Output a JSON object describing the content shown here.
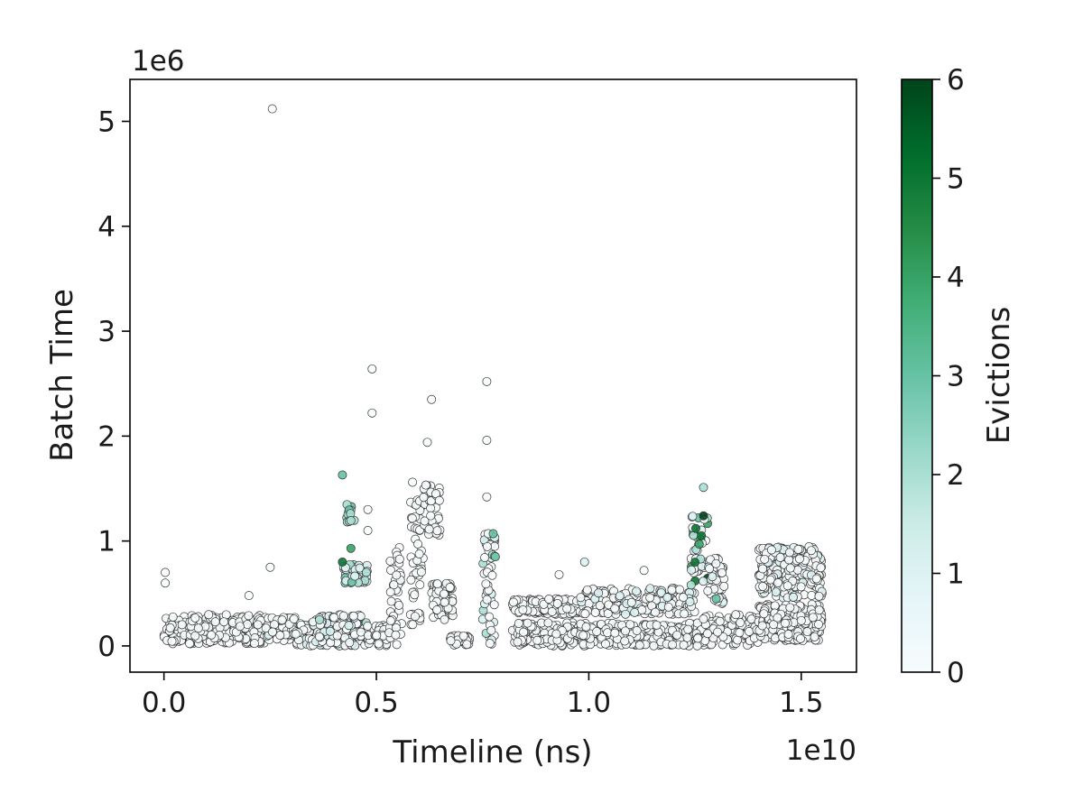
{
  "chart_data": {
    "type": "scatter",
    "title": "",
    "xlabel": "Timeline (ns)",
    "ylabel": "Batch Time",
    "x_offset_label": "1e10",
    "y_offset_label": "1e6",
    "x_scale": 10000000000.0,
    "y_scale": 1000000.0,
    "xlim": [
      -0.08,
      1.63
    ],
    "ylim": [
      -0.25,
      5.4
    ],
    "x_ticks": [
      0.0,
      0.5,
      1.0,
      1.5
    ],
    "x_tick_labels": [
      "0.0",
      "0.5",
      "1.0",
      "1.5"
    ],
    "y_ticks": [
      0,
      1,
      2,
      3,
      4,
      5
    ],
    "y_tick_labels": [
      "0",
      "1",
      "2",
      "3",
      "4",
      "5"
    ],
    "grid": false,
    "colorbar": {
      "label": "Evictions",
      "min": 0,
      "max": 6,
      "ticks": [
        0,
        1,
        2,
        3,
        4,
        5,
        6
      ],
      "tick_labels": [
        "0",
        "1",
        "2",
        "3",
        "4",
        "5",
        "6"
      ],
      "colors": [
        "#f7fcfd",
        "#e5f5f9",
        "#ccece6",
        "#99d8c9",
        "#66c2a4",
        "#41ae76",
        "#238b45",
        "#006d2c",
        "#00441b"
      ]
    },
    "marker": {
      "edge_color": "#333333",
      "style": "circle"
    },
    "clusters": [
      {
        "x_range": [
          0.0,
          0.06
        ],
        "y_range": [
          0.02,
          0.28
        ],
        "n": 60,
        "evictions": [
          0,
          0
        ]
      },
      {
        "x_range": [
          0.06,
          0.24
        ],
        "y_range": [
          0.02,
          0.3
        ],
        "n": 240,
        "evictions": [
          0,
          0
        ]
      },
      {
        "x_range": [
          0.24,
          0.31
        ],
        "y_range": [
          0.05,
          0.28
        ],
        "n": 60,
        "evictions": [
          0,
          1
        ]
      },
      {
        "x_range": [
          0.31,
          0.35
        ],
        "y_range": [
          0.0,
          0.22
        ],
        "n": 40,
        "evictions": [
          0,
          1
        ]
      },
      {
        "x_range": [
          0.35,
          0.48
        ],
        "y_range": [
          0.0,
          0.3
        ],
        "n": 140,
        "evictions": [
          0,
          2
        ]
      },
      {
        "x_range": [
          0.42,
          0.48
        ],
        "y_range": [
          0.6,
          0.78
        ],
        "n": 40,
        "evictions": [
          1,
          3
        ]
      },
      {
        "x_range": [
          0.43,
          0.45
        ],
        "y_range": [
          1.15,
          1.35
        ],
        "n": 12,
        "evictions": [
          2,
          3
        ]
      },
      {
        "x_range": [
          0.48,
          0.53
        ],
        "y_range": [
          0.0,
          0.2
        ],
        "n": 40,
        "evictions": [
          0,
          0
        ]
      },
      {
        "x_range": [
          0.53,
          0.56
        ],
        "y_range": [
          0.0,
          0.95
        ],
        "n": 40,
        "evictions": [
          0,
          0
        ]
      },
      {
        "x_range": [
          0.58,
          0.61
        ],
        "y_range": [
          0.2,
          1.4
        ],
        "n": 50,
        "evictions": [
          0,
          0
        ]
      },
      {
        "x_range": [
          0.61,
          0.65
        ],
        "y_range": [
          1.05,
          1.55
        ],
        "n": 40,
        "evictions": [
          0,
          0
        ]
      },
      {
        "x_range": [
          0.63,
          0.68
        ],
        "y_range": [
          0.25,
          0.6
        ],
        "n": 60,
        "evictions": [
          0,
          0
        ]
      },
      {
        "x_range": [
          0.67,
          0.72
        ],
        "y_range": [
          0.0,
          0.1
        ],
        "n": 40,
        "evictions": [
          0,
          0
        ]
      },
      {
        "x_range": [
          0.75,
          0.78
        ],
        "y_range": [
          0.0,
          1.1
        ],
        "n": 50,
        "evictions": [
          0,
          2
        ]
      },
      {
        "x_range": [
          0.82,
          0.98
        ],
        "y_range": [
          0.3,
          0.45
        ],
        "n": 120,
        "evictions": [
          0,
          0
        ]
      },
      {
        "x_range": [
          0.82,
          0.98
        ],
        "y_range": [
          0.0,
          0.22
        ],
        "n": 140,
        "evictions": [
          0,
          0
        ]
      },
      {
        "x_range": [
          0.98,
          1.25
        ],
        "y_range": [
          0.3,
          0.55
        ],
        "n": 180,
        "evictions": [
          0,
          1
        ]
      },
      {
        "x_range": [
          0.98,
          1.25
        ],
        "y_range": [
          0.0,
          0.22
        ],
        "n": 220,
        "evictions": [
          0,
          0
        ]
      },
      {
        "x_range": [
          1.24,
          1.28
        ],
        "y_range": [
          0.55,
          1.25
        ],
        "n": 40,
        "evictions": [
          0,
          6
        ]
      },
      {
        "x_range": [
          1.28,
          1.32
        ],
        "y_range": [
          0.4,
          0.85
        ],
        "n": 40,
        "evictions": [
          0,
          1
        ]
      },
      {
        "x_range": [
          1.25,
          1.4
        ],
        "y_range": [
          0.0,
          0.3
        ],
        "n": 140,
        "evictions": [
          0,
          0
        ]
      },
      {
        "x_range": [
          1.4,
          1.55
        ],
        "y_range": [
          0.45,
          0.95
        ],
        "n": 200,
        "evictions": [
          0,
          1
        ]
      },
      {
        "x_range": [
          1.4,
          1.55
        ],
        "y_range": [
          0.05,
          0.4
        ],
        "n": 220,
        "evictions": [
          0,
          0
        ]
      }
    ],
    "points": [
      {
        "x": 0.003,
        "y": 0.7,
        "evictions": 0
      },
      {
        "x": 0.003,
        "y": 0.6,
        "evictions": 0
      },
      {
        "x": 0.2,
        "y": 0.48,
        "evictions": 0
      },
      {
        "x": 0.255,
        "y": 5.12,
        "evictions": 0
      },
      {
        "x": 0.25,
        "y": 0.75,
        "evictions": 0
      },
      {
        "x": 0.42,
        "y": 1.63,
        "evictions": 3
      },
      {
        "x": 0.42,
        "y": 0.8,
        "evictions": 5
      },
      {
        "x": 0.44,
        "y": 0.93,
        "evictions": 4
      },
      {
        "x": 0.49,
        "y": 2.64,
        "evictions": 0
      },
      {
        "x": 0.49,
        "y": 2.22,
        "evictions": 0
      },
      {
        "x": 0.48,
        "y": 1.3,
        "evictions": 0
      },
      {
        "x": 0.48,
        "y": 1.1,
        "evictions": 0
      },
      {
        "x": 0.585,
        "y": 1.56,
        "evictions": 0
      },
      {
        "x": 0.63,
        "y": 2.35,
        "evictions": 0
      },
      {
        "x": 0.62,
        "y": 1.94,
        "evictions": 0
      },
      {
        "x": 0.76,
        "y": 2.52,
        "evictions": 0
      },
      {
        "x": 0.76,
        "y": 1.96,
        "evictions": 0
      },
      {
        "x": 0.76,
        "y": 1.42,
        "evictions": 0
      },
      {
        "x": 0.775,
        "y": 1.07,
        "evictions": 3
      },
      {
        "x": 0.78,
        "y": 0.85,
        "evictions": 3
      },
      {
        "x": 0.93,
        "y": 0.68,
        "evictions": 0
      },
      {
        "x": 0.99,
        "y": 0.8,
        "evictions": 1
      },
      {
        "x": 1.13,
        "y": 0.72,
        "evictions": 0
      },
      {
        "x": 1.27,
        "y": 1.51,
        "evictions": 2
      },
      {
        "x": 1.27,
        "y": 1.24,
        "evictions": 6
      },
      {
        "x": 1.265,
        "y": 1.05,
        "evictions": 5
      },
      {
        "x": 1.26,
        "y": 0.97,
        "evictions": 4
      },
      {
        "x": 1.3,
        "y": 0.45,
        "evictions": 3
      }
    ]
  }
}
